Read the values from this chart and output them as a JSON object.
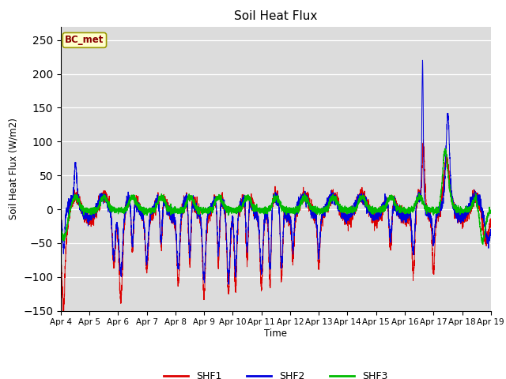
{
  "title": "Soil Heat Flux",
  "ylabel": "Soil Heat Flux (W/m2)",
  "xlabel": "Time",
  "annotation": "BC_met",
  "ylim": [
    -150,
    270
  ],
  "yticks": [
    -150,
    -100,
    -50,
    0,
    50,
    100,
    150,
    200,
    250
  ],
  "shf1_color": "#dd0000",
  "shf2_color": "#0000dd",
  "shf3_color": "#00bb00",
  "bg_color": "#dcdcdc",
  "legend_labels": [
    "SHF1",
    "SHF2",
    "SHF3"
  ],
  "seed": 7
}
